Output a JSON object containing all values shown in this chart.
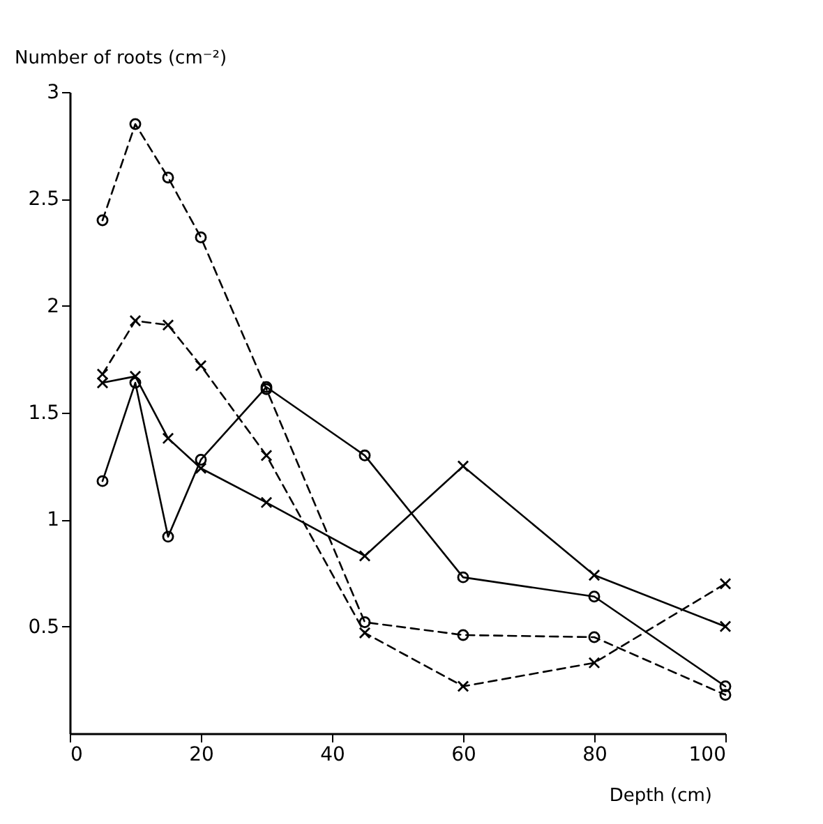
{
  "chart_data": {
    "type": "line",
    "xlabel": "Depth (cm)",
    "ylabel": "Number of roots (cm⁻²)",
    "x": [
      5,
      10,
      15,
      20,
      30,
      45,
      60,
      80,
      100
    ],
    "series": [
      {
        "color": "#000000",
        "marker": "circle",
        "line_style": "dashed",
        "values": [
          2.4,
          2.85,
          2.6,
          2.32,
          1.61,
          0.52,
          0.46,
          0.45,
          0.18
        ]
      },
      {
        "color": "#000000",
        "marker": "cross",
        "line_style": "dashed",
        "values": [
          1.68,
          1.93,
          1.91,
          1.72,
          1.3,
          0.47,
          0.22,
          0.33,
          0.7
        ]
      },
      {
        "color": "#000000",
        "marker": "circle",
        "line_style": "solid",
        "values": [
          1.18,
          1.64,
          0.92,
          1.28,
          1.62,
          1.3,
          0.73,
          0.64,
          0.22
        ]
      },
      {
        "color": "#000000",
        "marker": "cross",
        "line_style": "solid",
        "values": [
          1.64,
          1.67,
          1.38,
          1.24,
          1.08,
          0.83,
          1.25,
          0.74,
          0.5
        ]
      }
    ],
    "xlim": [
      0,
      100
    ],
    "xticks": [
      0,
      20,
      40,
      60,
      80,
      100
    ],
    "ylim": [
      0,
      3
    ],
    "yticks": [
      0.5,
      1,
      1.5,
      2,
      2.5,
      3
    ],
    "grid": false
  }
}
